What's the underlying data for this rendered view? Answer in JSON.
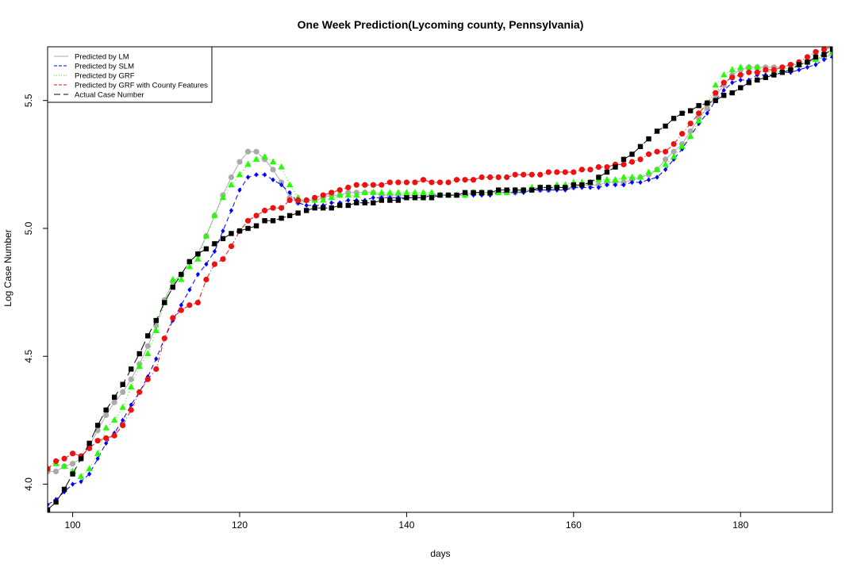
{
  "chart_data": {
    "type": "line",
    "title": "One Week Prediction(Lycoming county, Pennsylvania)",
    "xlabel": "days",
    "ylabel": "Log Case Number",
    "xlim": [
      97,
      191
    ],
    "ylim": [
      3.89,
      5.71
    ],
    "xticks": [
      100,
      120,
      140,
      160,
      180
    ],
    "yticks": [
      4.0,
      4.5,
      5.0,
      5.5
    ],
    "legend_position": "top-left",
    "series": [
      {
        "name": "Predicted by LM",
        "color": "#aaaaaa",
        "dash": "",
        "marker": "circle",
        "x": [
          97,
          98,
          99,
          100,
          101,
          102,
          103,
          104,
          105,
          106,
          107,
          108,
          109,
          110,
          111,
          112,
          113,
          114,
          115,
          116,
          117,
          118,
          119,
          120,
          121,
          122,
          123,
          124,
          125,
          126,
          127,
          128,
          129,
          130,
          131,
          132,
          133,
          134,
          135,
          136,
          137,
          138,
          139,
          140,
          141,
          142,
          143,
          144,
          145,
          146,
          147,
          148,
          149,
          150,
          151,
          152,
          153,
          154,
          155,
          156,
          157,
          158,
          159,
          160,
          161,
          162,
          163,
          164,
          165,
          166,
          167,
          168,
          169,
          170,
          171,
          172,
          173,
          174,
          175,
          176,
          177,
          178,
          179,
          180,
          181,
          182,
          183,
          184,
          185,
          186,
          187,
          188,
          189,
          190,
          191
        ],
        "y": [
          4.05,
          4.05,
          4.07,
          4.08,
          4.1,
          4.15,
          4.21,
          4.27,
          4.32,
          4.36,
          4.41,
          4.47,
          4.54,
          4.62,
          4.72,
          4.79,
          4.82,
          4.87,
          4.9,
          4.97,
          5.05,
          5.13,
          5.2,
          5.26,
          5.3,
          5.3,
          5.27,
          5.23,
          5.18,
          5.12,
          5.1,
          5.11,
          5.11,
          5.12,
          5.13,
          5.13,
          5.14,
          5.14,
          5.14,
          5.14,
          5.13,
          5.13,
          5.13,
          5.13,
          5.13,
          5.13,
          5.13,
          5.13,
          5.13,
          5.13,
          5.13,
          5.14,
          5.14,
          5.14,
          5.14,
          5.14,
          5.14,
          5.15,
          5.15,
          5.15,
          5.15,
          5.16,
          5.16,
          5.16,
          5.17,
          5.17,
          5.17,
          5.18,
          5.18,
          5.18,
          5.19,
          5.2,
          5.21,
          5.23,
          5.27,
          5.3,
          5.33,
          5.38,
          5.43,
          5.47,
          5.52,
          5.56,
          5.6,
          5.62,
          5.63,
          5.63,
          5.63,
          5.63,
          5.63,
          5.64,
          5.64,
          5.65,
          5.66,
          5.67,
          5.68
        ]
      },
      {
        "name": "Predicted by SLM",
        "color": "#0000ff",
        "dash": "6,4",
        "marker": "diamond",
        "x": [
          97,
          98,
          99,
          100,
          101,
          102,
          103,
          104,
          105,
          106,
          107,
          108,
          109,
          110,
          111,
          112,
          113,
          114,
          115,
          116,
          117,
          118,
          119,
          120,
          121,
          122,
          123,
          124,
          125,
          126,
          127,
          128,
          129,
          130,
          131,
          132,
          133,
          134,
          135,
          136,
          137,
          138,
          139,
          140,
          141,
          142,
          143,
          144,
          145,
          146,
          147,
          148,
          149,
          150,
          151,
          152,
          153,
          154,
          155,
          156,
          157,
          158,
          159,
          160,
          161,
          162,
          163,
          164,
          165,
          166,
          167,
          168,
          169,
          170,
          171,
          172,
          173,
          174,
          175,
          176,
          177,
          178,
          179,
          180,
          181,
          182,
          183,
          184,
          185,
          186,
          187,
          188,
          189,
          190,
          191
        ],
        "y": [
          3.92,
          3.94,
          3.97,
          4.0,
          4.01,
          4.04,
          4.1,
          4.16,
          4.2,
          4.25,
          4.31,
          4.36,
          4.42,
          4.49,
          4.57,
          4.64,
          4.7,
          4.76,
          4.82,
          4.86,
          4.91,
          4.99,
          5.07,
          5.15,
          5.2,
          5.21,
          5.21,
          5.19,
          5.17,
          5.14,
          5.1,
          5.09,
          5.09,
          5.09,
          5.1,
          5.1,
          5.11,
          5.11,
          5.11,
          5.12,
          5.12,
          5.12,
          5.12,
          5.12,
          5.12,
          5.12,
          5.13,
          5.13,
          5.13,
          5.13,
          5.13,
          5.13,
          5.13,
          5.13,
          5.14,
          5.14,
          5.14,
          5.14,
          5.15,
          5.15,
          5.15,
          5.15,
          5.15,
          5.16,
          5.16,
          5.16,
          5.16,
          5.17,
          5.17,
          5.17,
          5.18,
          5.18,
          5.19,
          5.2,
          5.23,
          5.27,
          5.31,
          5.36,
          5.41,
          5.45,
          5.5,
          5.54,
          5.57,
          5.58,
          5.58,
          5.6,
          5.6,
          5.6,
          5.61,
          5.61,
          5.62,
          5.63,
          5.64,
          5.66,
          5.67
        ]
      },
      {
        "name": "Predicted by GRF",
        "color": "#22ff00",
        "dash": "1,3",
        "marker": "triangle",
        "x": [
          97,
          98,
          99,
          100,
          101,
          102,
          103,
          104,
          105,
          106,
          107,
          108,
          109,
          110,
          111,
          112,
          113,
          114,
          115,
          116,
          117,
          118,
          119,
          120,
          121,
          122,
          123,
          124,
          125,
          126,
          127,
          128,
          129,
          130,
          131,
          132,
          133,
          134,
          135,
          136,
          137,
          138,
          139,
          140,
          141,
          142,
          143,
          144,
          145,
          146,
          147,
          148,
          149,
          150,
          151,
          152,
          153,
          154,
          155,
          156,
          157,
          158,
          159,
          160,
          161,
          162,
          163,
          164,
          165,
          166,
          167,
          168,
          169,
          170,
          171,
          172,
          173,
          174,
          175,
          176,
          177,
          178,
          179,
          180,
          181,
          182,
          183,
          184,
          185,
          186,
          187,
          188,
          189,
          190,
          191
        ],
        "y": [
          4.06,
          4.08,
          4.07,
          4.05,
          4.03,
          4.06,
          4.12,
          4.22,
          4.25,
          4.3,
          4.38,
          4.46,
          4.51,
          4.6,
          4.71,
          4.8,
          4.8,
          4.85,
          4.88,
          4.97,
          5.05,
          5.12,
          5.17,
          5.21,
          5.25,
          5.27,
          5.28,
          5.26,
          5.24,
          5.17,
          5.12,
          5.11,
          5.11,
          5.11,
          5.12,
          5.13,
          5.13,
          5.13,
          5.14,
          5.14,
          5.14,
          5.14,
          5.14,
          5.14,
          5.14,
          5.14,
          5.14,
          5.13,
          5.13,
          5.13,
          5.13,
          5.14,
          5.14,
          5.14,
          5.14,
          5.14,
          5.15,
          5.15,
          5.16,
          5.16,
          5.16,
          5.17,
          5.17,
          5.18,
          5.18,
          5.18,
          5.19,
          5.19,
          5.19,
          5.2,
          5.2,
          5.2,
          5.22,
          5.23,
          5.25,
          5.28,
          5.32,
          5.36,
          5.42,
          5.49,
          5.56,
          5.6,
          5.62,
          5.63,
          5.63,
          5.63,
          5.62,
          5.62,
          5.62,
          5.63,
          5.64,
          5.65,
          5.66,
          5.68,
          5.69
        ]
      },
      {
        "name": "Predicted by GRF with County Features",
        "color": "#ee1111",
        "dash": "6,3,1,3",
        "marker": "circle",
        "x": [
          97,
          98,
          99,
          100,
          101,
          102,
          103,
          104,
          105,
          106,
          107,
          108,
          109,
          110,
          111,
          112,
          113,
          114,
          115,
          116,
          117,
          118,
          119,
          120,
          121,
          122,
          123,
          124,
          125,
          126,
          127,
          128,
          129,
          130,
          131,
          132,
          133,
          134,
          135,
          136,
          137,
          138,
          139,
          140,
          141,
          142,
          143,
          144,
          145,
          146,
          147,
          148,
          149,
          150,
          151,
          152,
          153,
          154,
          155,
          156,
          157,
          158,
          159,
          160,
          161,
          162,
          163,
          164,
          165,
          166,
          167,
          168,
          169,
          170,
          171,
          172,
          173,
          174,
          175,
          176,
          177,
          178,
          179,
          180,
          181,
          182,
          183,
          184,
          185,
          186,
          187,
          188,
          189,
          190,
          191
        ],
        "y": [
          4.06,
          4.09,
          4.1,
          4.12,
          4.11,
          4.14,
          4.17,
          4.18,
          4.19,
          4.23,
          4.29,
          4.36,
          4.41,
          4.45,
          4.57,
          4.65,
          4.68,
          4.7,
          4.71,
          4.8,
          4.86,
          4.88,
          4.93,
          4.99,
          5.03,
          5.05,
          5.07,
          5.08,
          5.08,
          5.11,
          5.11,
          5.11,
          5.12,
          5.13,
          5.14,
          5.15,
          5.16,
          5.17,
          5.17,
          5.17,
          5.17,
          5.18,
          5.18,
          5.18,
          5.18,
          5.19,
          5.18,
          5.18,
          5.18,
          5.19,
          5.19,
          5.19,
          5.2,
          5.2,
          5.2,
          5.2,
          5.21,
          5.21,
          5.21,
          5.21,
          5.22,
          5.22,
          5.22,
          5.22,
          5.23,
          5.23,
          5.24,
          5.24,
          5.25,
          5.25,
          5.26,
          5.27,
          5.29,
          5.3,
          5.3,
          5.33,
          5.37,
          5.41,
          5.45,
          5.49,
          5.53,
          5.57,
          5.59,
          5.6,
          5.61,
          5.61,
          5.62,
          5.62,
          5.63,
          5.64,
          5.65,
          5.67,
          5.69,
          5.7,
          5.71
        ]
      },
      {
        "name": "Actual Case Number",
        "color": "#000000",
        "dash": "12,6",
        "marker": "square",
        "x": [
          97,
          98,
          99,
          100,
          101,
          102,
          103,
          104,
          105,
          106,
          107,
          108,
          109,
          110,
          111,
          112,
          113,
          114,
          115,
          116,
          117,
          118,
          119,
          120,
          121,
          122,
          123,
          124,
          125,
          126,
          127,
          128,
          129,
          130,
          131,
          132,
          133,
          134,
          135,
          136,
          137,
          138,
          139,
          140,
          141,
          142,
          143,
          144,
          145,
          146,
          147,
          148,
          149,
          150,
          151,
          152,
          153,
          154,
          155,
          156,
          157,
          158,
          159,
          160,
          161,
          162,
          163,
          164,
          165,
          166,
          167,
          168,
          169,
          170,
          171,
          172,
          173,
          174,
          175,
          176,
          177,
          178,
          179,
          180,
          181,
          182,
          183,
          184,
          185,
          186,
          187,
          188,
          189,
          190,
          191
        ],
        "y": [
          3.9,
          3.93,
          3.98,
          4.04,
          4.1,
          4.16,
          4.23,
          4.29,
          4.34,
          4.39,
          4.45,
          4.51,
          4.58,
          4.64,
          4.71,
          4.77,
          4.82,
          4.87,
          4.9,
          4.92,
          4.94,
          4.96,
          4.98,
          4.99,
          5.0,
          5.01,
          5.03,
          5.03,
          5.04,
          5.05,
          5.06,
          5.07,
          5.08,
          5.08,
          5.08,
          5.09,
          5.09,
          5.1,
          5.1,
          5.1,
          5.11,
          5.11,
          5.11,
          5.12,
          5.12,
          5.12,
          5.12,
          5.13,
          5.13,
          5.13,
          5.14,
          5.14,
          5.14,
          5.14,
          5.15,
          5.15,
          5.15,
          5.15,
          5.15,
          5.16,
          5.16,
          5.16,
          5.16,
          5.17,
          5.17,
          5.18,
          5.2,
          5.22,
          5.24,
          5.27,
          5.29,
          5.32,
          5.35,
          5.38,
          5.4,
          5.43,
          5.45,
          5.46,
          5.48,
          5.49,
          5.5,
          5.52,
          5.53,
          5.55,
          5.57,
          5.58,
          5.59,
          5.6,
          5.61,
          5.62,
          5.64,
          5.65,
          5.67,
          5.68,
          5.7
        ]
      }
    ]
  }
}
